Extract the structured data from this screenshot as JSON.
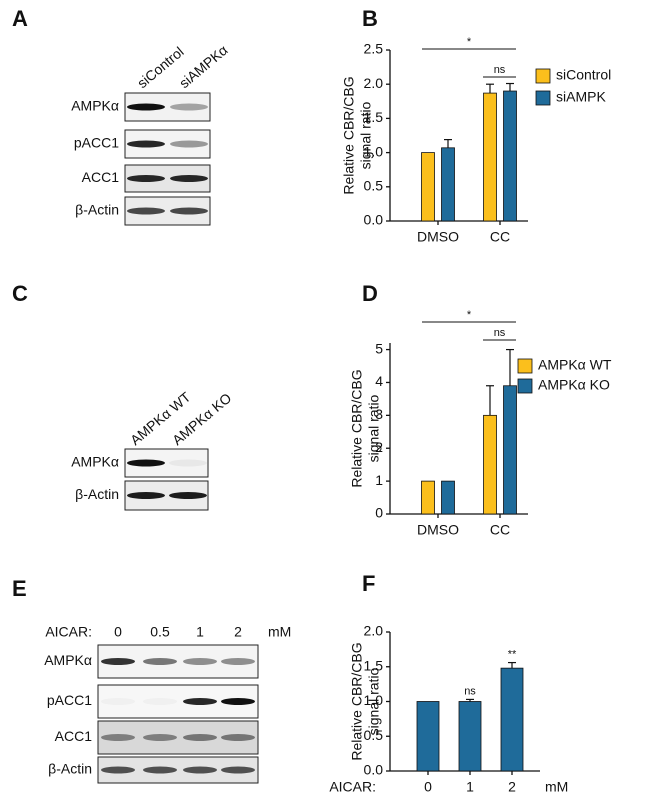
{
  "blots": [
    {
      "letter": "A",
      "columns": [
        "siControl",
        "siAMPKα"
      ],
      "rows": [
        "AMPKα",
        "pACC1",
        "ACC1",
        "β-Actin"
      ]
    },
    {
      "letter": "C",
      "columns": [
        "AMPKα WT",
        "AMPKα KO"
      ],
      "rows": [
        "AMPKα",
        "β-Actin"
      ]
    },
    {
      "letter": "E",
      "header": "AICAR:",
      "columns": [
        "0",
        "0.5",
        "1",
        "2"
      ],
      "unit": "mM",
      "rows": [
        "AMPKα",
        "pACC1",
        "ACC1",
        "β-Actin"
      ]
    }
  ],
  "chart_data": [
    {
      "type": "bar",
      "panel": "B",
      "y_label": [
        "Relative CBR/CBG",
        "signal ratio"
      ],
      "categories": [
        "DMSO",
        "CC"
      ],
      "series": [
        {
          "name": "siControl",
          "color": "#fbbf1c",
          "values": [
            1.0,
            1.87
          ],
          "errors": [
            0,
            0.13
          ]
        },
        {
          "name": "siAMPK",
          "color": "#1f6b9a",
          "values": [
            1.07,
            1.9
          ],
          "errors": [
            0.12,
            0.11
          ]
        }
      ],
      "ylim": [
        0,
        2.5
      ],
      "yticks": [
        {
          "value": 0,
          "label": "0.0"
        },
        0.5,
        {
          "value": 1,
          "label": "1.0"
        },
        1.5,
        {
          "value": 2,
          "label": "2.0"
        },
        2.5
      ],
      "brackets": [
        {
          "label": "*"
        },
        {
          "label": "ns"
        }
      ]
    },
    {
      "type": "bar",
      "panel": "D",
      "y_label": [
        "Relative CBR/CBG",
        "signal ratio"
      ],
      "categories": [
        "DMSO",
        "CC"
      ],
      "series": [
        {
          "name": "AMPKα WT",
          "color": "#fbbf1c",
          "values": [
            1,
            3.0
          ],
          "errors": [
            0,
            0.9
          ]
        },
        {
          "name": "AMPKα KO",
          "color": "#1f6b9a",
          "values": [
            1,
            3.9
          ],
          "errors": [
            0,
            1.1
          ]
        }
      ],
      "ylim": [
        0,
        5.2
      ],
      "yticks": [
        0,
        1,
        2,
        3,
        4,
        5
      ],
      "brackets": [
        {
          "label": "*"
        },
        {
          "label": "ns"
        }
      ]
    },
    {
      "type": "bar",
      "panel": "F",
      "y_label": [
        "Relative CBR/CBG",
        "signal ratio"
      ],
      "x_label": "AICAR:",
      "unit": "mM",
      "categories": [
        "0",
        "1",
        "2"
      ],
      "series": [
        {
          "color": "#1f6b9a",
          "values": [
            1.0,
            1.0,
            1.48
          ],
          "errors": [
            0,
            0.03,
            0.08
          ]
        }
      ],
      "ylim": [
        0,
        2.0
      ],
      "yticks": [
        {
          "value": 0,
          "label": "0.0"
        },
        0.5,
        {
          "value": 1,
          "label": "1.0"
        },
        1.5,
        {
          "value": 2,
          "label": "2.0"
        }
      ],
      "significance": [
        {
          "category": "1",
          "label": "ns"
        },
        {
          "category": "2",
          "label": "**"
        }
      ]
    }
  ]
}
